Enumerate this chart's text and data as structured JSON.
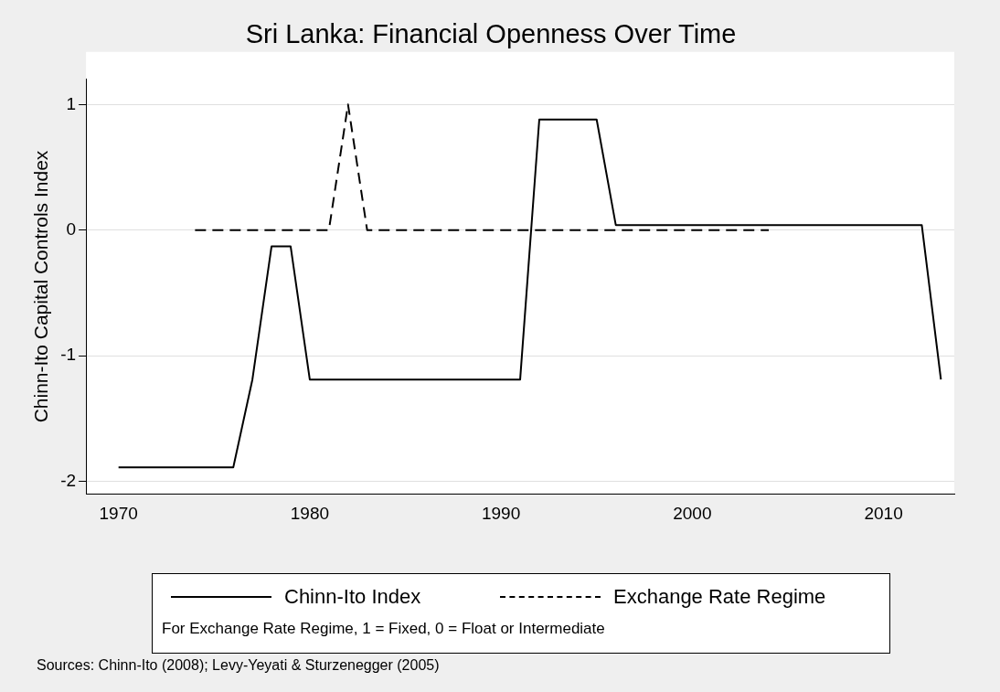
{
  "chart_data": {
    "type": "line",
    "title": "Sri Lanka: Financial Openness Over Time",
    "ylabel": "Chinn-Ito Capital Controls Index",
    "series": [
      {
        "name": "Chinn-Ito Index",
        "color": "#000000",
        "line_style": "solid",
        "x": [
          1970,
          1976,
          1977,
          1978,
          1979,
          1980,
          1991,
          1992,
          1995,
          1996,
          2012,
          2013
        ],
        "values": [
          -1.89,
          -1.89,
          -1.19,
          -0.13,
          -0.13,
          -1.19,
          -1.19,
          0.88,
          0.88,
          0.04,
          0.04,
          -1.19
        ]
      },
      {
        "name": "Exchange Rate Regime",
        "color": "#000000",
        "line_style": "dashed",
        "x": [
          1974,
          1981,
          1982,
          1983,
          2004
        ],
        "values": [
          0,
          0,
          1,
          0,
          0
        ]
      }
    ],
    "xlim": [
      1968.3,
      2013.7
    ],
    "xticks": [
      1970,
      1980,
      1990,
      2000,
      2010
    ],
    "ylim": [
      -2.1,
      1.2
    ],
    "yticks": [
      -2,
      -1,
      0,
      1
    ],
    "grid": "y",
    "legend": "bottom",
    "marker": "none",
    "annotations": [
      "For Exchange Rate Regime, 1 = Fixed, 0 = Float or Intermediate",
      "Sources: Chinn-Ito (2008); Levy-Yeyati & Sturzenegger (2005)"
    ]
  }
}
